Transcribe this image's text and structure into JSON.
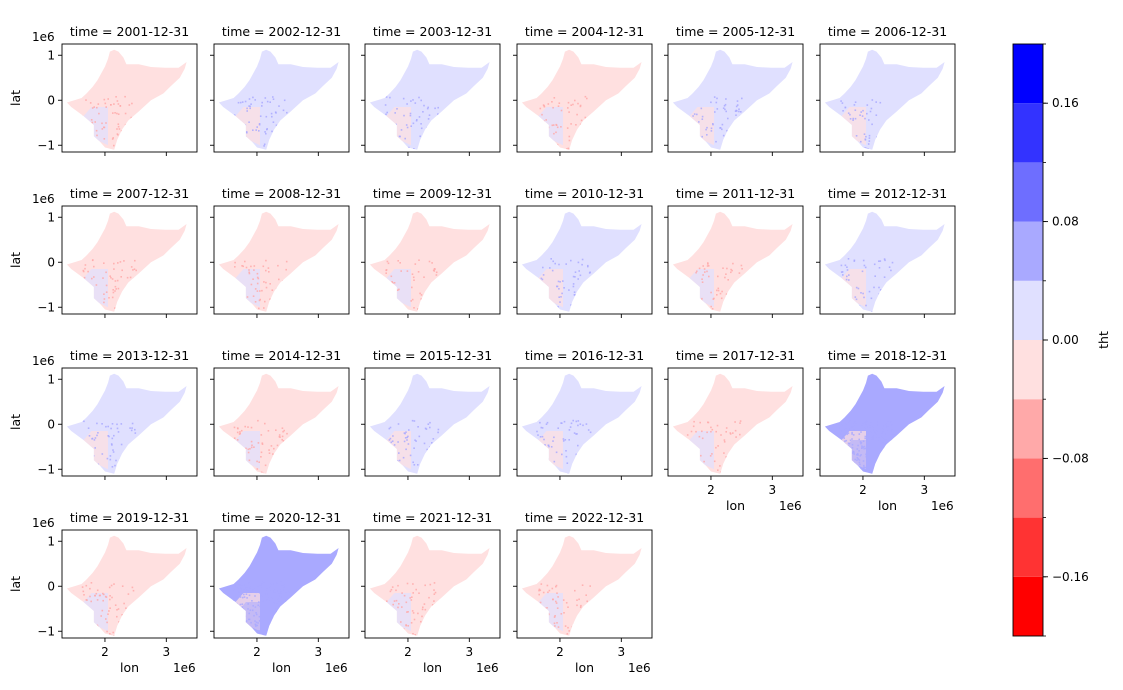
{
  "chart_data": {
    "type": "heatmap",
    "layout": {
      "rows": 4,
      "cols": 6
    },
    "panel_title_prefix": "time = ",
    "panels": [
      {
        "time": "2001-12-31",
        "mean": -0.01
      },
      {
        "time": "2002-12-31",
        "mean": 0.0
      },
      {
        "time": "2003-12-31",
        "mean": 0.005
      },
      {
        "time": "2004-12-31",
        "mean": -0.01
      },
      {
        "time": "2005-12-31",
        "mean": 0.01
      },
      {
        "time": "2006-12-31",
        "mean": 0.01
      },
      {
        "time": "2007-12-31",
        "mean": -0.01
      },
      {
        "time": "2008-12-31",
        "mean": -0.015
      },
      {
        "time": "2009-12-31",
        "mean": -0.015
      },
      {
        "time": "2010-12-31",
        "mean": 0.02
      },
      {
        "time": "2011-12-31",
        "mean": -0.015
      },
      {
        "time": "2012-12-31",
        "mean": 0.0
      },
      {
        "time": "2013-12-31",
        "mean": 0.015
      },
      {
        "time": "2014-12-31",
        "mean": -0.01
      },
      {
        "time": "2015-12-31",
        "mean": 0.0
      },
      {
        "time": "2016-12-31",
        "mean": 0.005
      },
      {
        "time": "2017-12-31",
        "mean": -0.01
      },
      {
        "time": "2018-12-31",
        "mean": 0.04
      },
      {
        "time": "2019-12-31",
        "mean": -0.015
      },
      {
        "time": "2020-12-31",
        "mean": 0.05
      },
      {
        "time": "2021-12-31",
        "mean": -0.01
      },
      {
        "time": "2022-12-31",
        "mean": -0.01
      }
    ],
    "xlabel": "lon",
    "ylabel": "lat",
    "xlim": [
      1.3,
      3.5
    ],
    "ylim": [
      -1.15,
      1.25
    ],
    "x_ticks": [
      2,
      3
    ],
    "y_ticks": [
      1,
      0,
      -1
    ],
    "offset_label": "1e6",
    "colorbar": {
      "label": "tht",
      "range": [
        -0.2,
        0.2
      ],
      "boundaries": [
        -0.2,
        -0.16,
        -0.12,
        -0.08,
        -0.04,
        0.0,
        0.04,
        0.08,
        0.12,
        0.16,
        0.2
      ],
      "colors": [
        "#ff0000",
        "#ff3333",
        "#ff6e6e",
        "#ffa9a9",
        "#ffe0e0",
        "#e0e0ff",
        "#a9a9ff",
        "#6e6eff",
        "#3333ff",
        "#0000ff"
      ],
      "tick_values": [
        -0.16,
        -0.08,
        0.0,
        0.08,
        0.16
      ],
      "tick_labels": [
        "−0.16",
        "−0.08",
        "0.00",
        "0.08",
        "0.16"
      ]
    }
  }
}
